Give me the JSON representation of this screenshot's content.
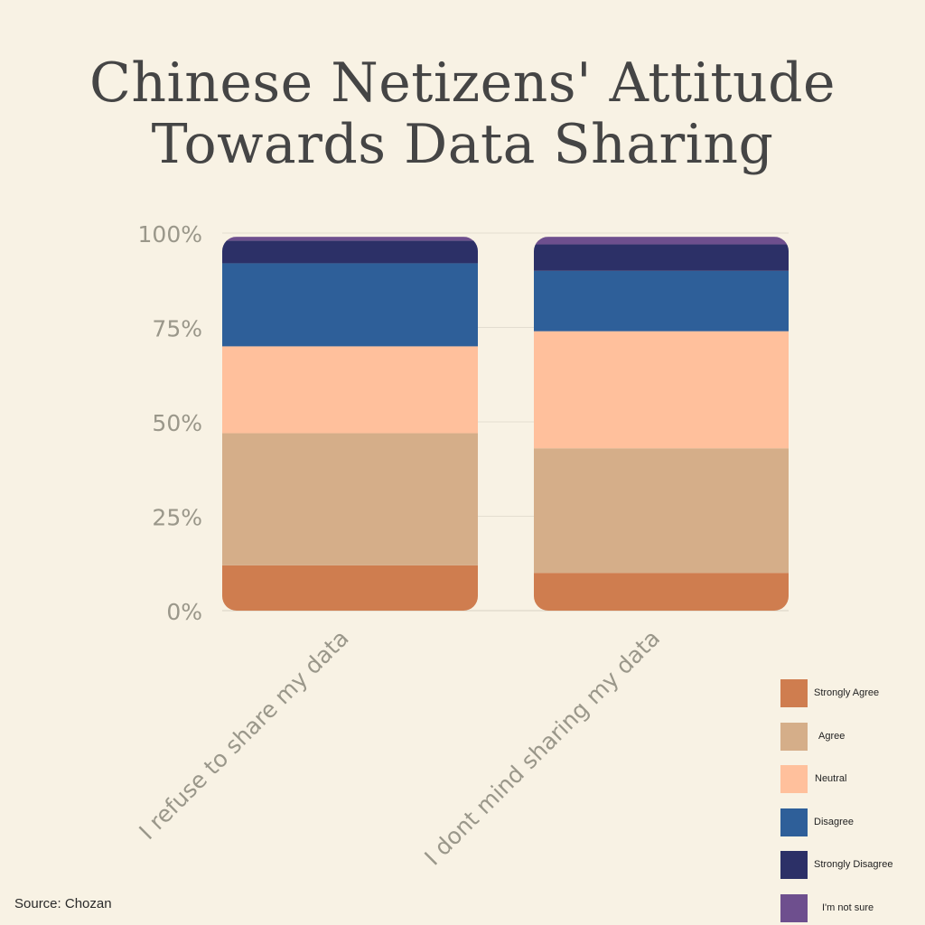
{
  "title_lines": [
    "Chinese Netizens' Attitude",
    "Towards Data Sharing"
  ],
  "source": "Source: Chozan",
  "chart_data": {
    "type": "bar",
    "stacked": true,
    "categories": [
      "I refuse to share my data",
      "I dont mind sharing my data"
    ],
    "series": [
      {
        "name": "Strongly Agree",
        "color": "#cf7d4f",
        "values": [
          12,
          10
        ]
      },
      {
        "name": "Agree",
        "color": "#d5ae89",
        "values": [
          35,
          33
        ]
      },
      {
        "name": "Neutral",
        "color": "#ffc09c",
        "values": [
          23,
          31
        ]
      },
      {
        "name": "Disagree",
        "color": "#2e5f99",
        "values": [
          22,
          16
        ]
      },
      {
        "name": "Strongly Disagree",
        "color": "#2c3067",
        "values": [
          6,
          7
        ]
      },
      {
        "name": "I'm not sure",
        "color": "#6e4f8e",
        "values": [
          1,
          2
        ]
      }
    ],
    "yticks": [
      "0%",
      "25%",
      "50%",
      "75%",
      "100%"
    ],
    "ylim": [
      0,
      100
    ],
    "grid": true,
    "legend_position": "bottom-right"
  }
}
